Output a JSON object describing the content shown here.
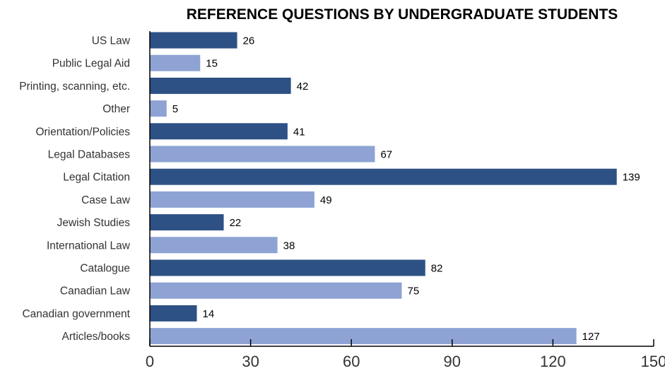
{
  "chart_data": {
    "type": "bar",
    "orientation": "horizontal",
    "title": "REFERENCE QUESTIONS BY UNDERGRADUATE STUDENTS",
    "xlabel": "",
    "ylabel": "",
    "xlim": [
      0,
      150
    ],
    "xticks": [
      0,
      30,
      60,
      90,
      120,
      150
    ],
    "categories": [
      "US Law",
      "Public Legal Aid",
      "Printing, scanning, etc.",
      "Other",
      "Orientation/Policies",
      "Legal Databases",
      "Legal Citation",
      "Case Law",
      "Jewish Studies",
      "International Law",
      "Catalogue",
      "Canadian Law",
      "Canadian government",
      "Articles/books"
    ],
    "values": [
      26,
      15,
      42,
      5,
      41,
      67,
      139,
      49,
      22,
      38,
      82,
      75,
      14,
      127
    ],
    "colors": {
      "dark": "#2e5185",
      "light": "#8ea3d4",
      "axis": "#000000"
    },
    "grid": false,
    "legend": "none"
  }
}
